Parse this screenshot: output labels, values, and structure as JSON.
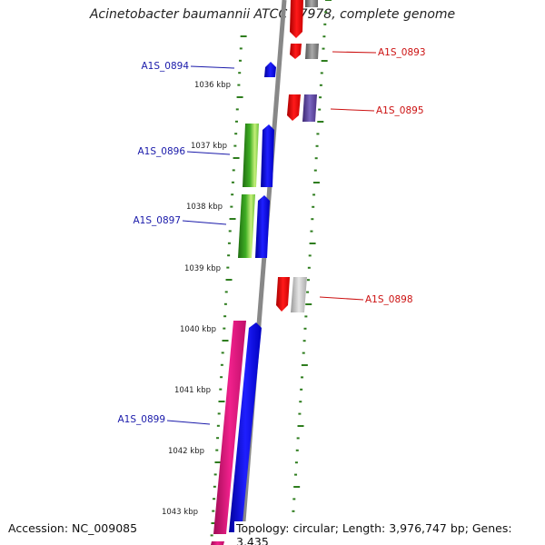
{
  "title": "Acinetobacter baumannii ATCC 17978, complete genome",
  "footer": {
    "accession": "Accession: NC_009085",
    "topology": "Topology: circular; Length: 3,976,747 bp; Genes: 3,435"
  },
  "scale_labels": [
    "1036 kbp",
    "1037 kbp",
    "1038 kbp",
    "1039 kbp",
    "1040 kbp",
    "1041 kbp",
    "1042 kbp",
    "1043 kbp"
  ],
  "gene_labels": {
    "left": [
      "A1S_0894",
      "A1S_0896",
      "A1S_0897",
      "A1S_0899"
    ],
    "right": [
      "A1S_0893",
      "A1S_0895",
      "A1S_0898"
    ]
  },
  "colors": {
    "forward_strand": "#0000ee",
    "reverse_strand": "#ee0000",
    "left_label": "#1a1aaa",
    "right_label": "#cc1111",
    "ticks": "#2e7d1e",
    "backbone": "#888888",
    "cog_green": "#2fa81b",
    "cog_pink": "#e0167a",
    "cog_purple": "#5a3f96",
    "cog_grey": "#888888"
  }
}
